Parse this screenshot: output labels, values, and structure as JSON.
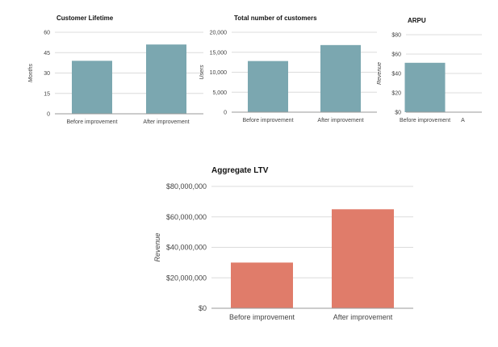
{
  "chart_data": [
    {
      "type": "bar",
      "title": "Customer Lifetime",
      "ylabel": "Months",
      "xlabel": "",
      "categories": [
        "Before improvement",
        "After improvement"
      ],
      "values": [
        39,
        51
      ],
      "ylim": [
        0,
        60
      ],
      "yticks": [
        "0",
        "15",
        "30",
        "45",
        "60"
      ],
      "color": "#7ba7b0"
    },
    {
      "type": "bar",
      "title": "Total number of customers",
      "ylabel": "Users",
      "xlabel": "",
      "categories": [
        "Before improvement",
        "After improvement"
      ],
      "values": [
        12800,
        16800
      ],
      "ylim": [
        0,
        20000
      ],
      "yticks": [
        "0",
        "5,000",
        "10,000",
        "15,000",
        "20,000"
      ],
      "color": "#7ba7b0"
    },
    {
      "type": "bar",
      "title": "ARPU",
      "ylabel": "Revenue",
      "xlabel": "",
      "categories": [
        "Before improvement",
        "A"
      ],
      "values": [
        51,
        null
      ],
      "ylim": [
        0,
        80
      ],
      "yticks": [
        "$0",
        "$20",
        "$40",
        "$60",
        "$80"
      ],
      "color": "#7ba7b0"
    },
    {
      "type": "bar",
      "title": "Aggregate LTV",
      "ylabel": "Revenue",
      "xlabel": "",
      "categories": [
        "Before improvement",
        "After improvement"
      ],
      "values": [
        30000000,
        65000000
      ],
      "ylim": [
        0,
        80000000
      ],
      "yticks": [
        "$0",
        "$20,000,000",
        "$40,000,000",
        "$60,000,000",
        "$80,000,000"
      ],
      "color": "#e07c6a"
    }
  ]
}
